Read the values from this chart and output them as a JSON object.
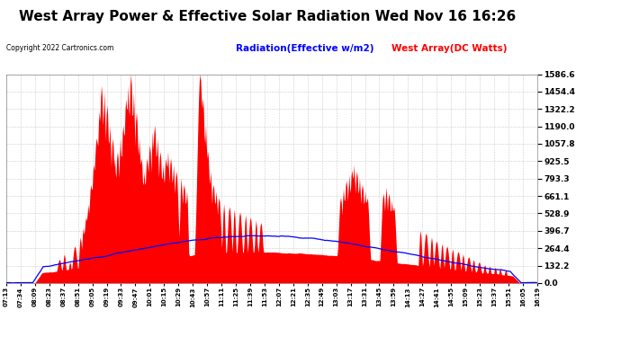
{
  "title": "West Array Power & Effective Solar Radiation Wed Nov 16 16:26",
  "copyright": "Copyright 2022 Cartronics.com",
  "legend_radiation": "Radiation(Effective w/m2)",
  "legend_west_array": "West Array(DC Watts)",
  "radiation_color": "#0000ff",
  "west_array_color": "#ff0000",
  "ymax": 1586.6,
  "yticks": [
    0.0,
    132.2,
    264.4,
    396.7,
    528.9,
    661.1,
    793.3,
    925.5,
    1057.8,
    1190.0,
    1322.2,
    1454.4,
    1586.6
  ],
  "background_color": "#ffffff",
  "plot_bg_color": "#ffffff",
  "grid_color": "#cccccc",
  "title_fontsize": 11,
  "tick_labels": [
    "07:13",
    "07:34",
    "08:09",
    "08:23",
    "08:37",
    "08:51",
    "09:05",
    "09:19",
    "09:33",
    "09:47",
    "10:01",
    "10:15",
    "10:29",
    "10:43",
    "10:57",
    "11:11",
    "11:25",
    "11:39",
    "11:53",
    "12:07",
    "12:21",
    "12:35",
    "12:49",
    "13:03",
    "13:17",
    "13:31",
    "13:45",
    "13:59",
    "14:13",
    "14:27",
    "14:41",
    "14:55",
    "15:09",
    "15:23",
    "15:37",
    "15:51",
    "16:05",
    "16:19"
  ],
  "num_points": 760
}
